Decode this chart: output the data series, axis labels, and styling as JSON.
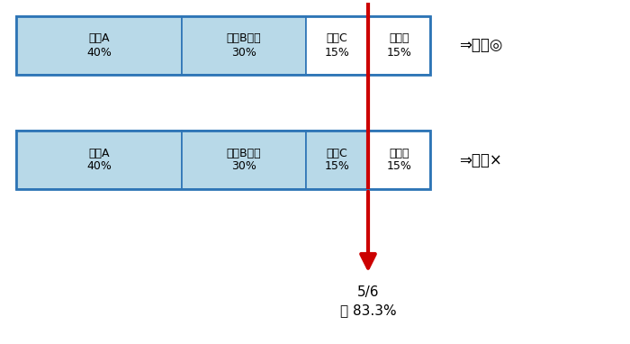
{
  "bars": [
    {
      "segments": [
        {
          "label": "株主A\n40%",
          "value": 40,
          "color": "#b8d9e8",
          "border": "#2e75b6"
        },
        {
          "label": "株主B法人\n30%",
          "value": 30,
          "color": "#b8d9e8",
          "border": "#2e75b6"
        },
        {
          "label": "株主C\n15%",
          "value": 15,
          "color": "#ffffff",
          "border": "#2e75b6"
        },
        {
          "label": "その他\n15%",
          "value": 15,
          "color": "#ffffff",
          "border": "#2e75b6"
        }
      ],
      "judgment": "⇒判定◎"
    },
    {
      "segments": [
        {
          "label": "株主A\n40%",
          "value": 40,
          "color": "#b8d9e8",
          "border": "#2e75b6"
        },
        {
          "label": "株主B法人\n30%",
          "value": 30,
          "color": "#b8d9e8",
          "border": "#2e75b6"
        },
        {
          "label": "株主C\n15%",
          "value": 15,
          "color": "#b8d9e8",
          "border": "#2e75b6"
        },
        {
          "label": "その他\n15%",
          "value": 15,
          "color": "#ffffff",
          "border": "#2e75b6"
        }
      ],
      "judgment": "⇒判定×"
    }
  ],
  "arrow_text_line1": "5/6",
  "arrow_text_line2": "約 83.3%",
  "background_color": "#ffffff",
  "text_color": "#000000",
  "border_color": "#2e75b6",
  "red_color": "#cc0000",
  "font_size_label": 9,
  "font_size_judgment": 12,
  "font_size_result": 11
}
